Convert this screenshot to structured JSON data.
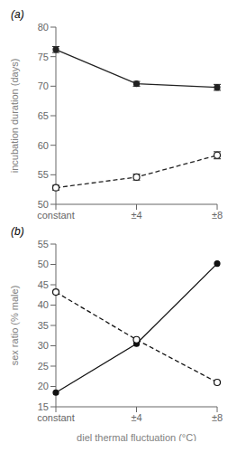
{
  "chart_data": [
    {
      "type": "line",
      "title": "(a)",
      "categories": [
        "constant",
        "±4",
        "±8"
      ],
      "ylabel": "incubation duration (days)",
      "ylim": [
        50,
        80
      ],
      "yticks": [
        50,
        55,
        60,
        65,
        70,
        75,
        80
      ],
      "grid": false,
      "series": [
        {
          "values": [
            76.2,
            70.4,
            69.8
          ],
          "errors": [
            0.5,
            0.4,
            0.5
          ],
          "line_style": "solid",
          "marker": "filled_circle",
          "color": "#222222"
        },
        {
          "values": [
            52.8,
            54.6,
            58.3
          ],
          "errors": [
            0.4,
            0.5,
            0.6
          ],
          "line_style": "dashed",
          "marker": "open_circle",
          "color": "#222222"
        }
      ]
    },
    {
      "type": "line",
      "title": "(b)",
      "categories": [
        "constant",
        "±4",
        "±8"
      ],
      "ylabel": "sex ratio (% male)",
      "xlabel": "diel thermal fluctuation (°C)",
      "ylim": [
        15,
        55
      ],
      "yticks": [
        15,
        20,
        25,
        30,
        35,
        40,
        45,
        50,
        55
      ],
      "grid": false,
      "series": [
        {
          "values": [
            18.5,
            30.5,
            50.2
          ],
          "line_style": "solid",
          "marker": "filled_circle",
          "color": "#111111"
        },
        {
          "values": [
            43.2,
            31.5,
            21.0
          ],
          "line_style": "dashed",
          "marker": "open_circle",
          "color": "#111111"
        }
      ]
    }
  ]
}
